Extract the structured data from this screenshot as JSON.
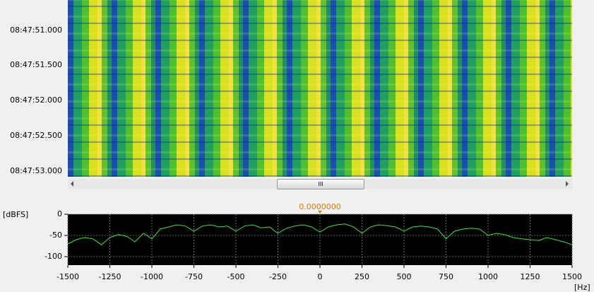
{
  "waterfall": {
    "time_labels": [
      "08:47:51.000",
      "08:47:51.500",
      "08:47:52.000",
      "08:47:52.500",
      "08:47:53.000"
    ]
  },
  "scrollbar": {
    "thumb_label": "III"
  },
  "chart_data": {
    "type": "line",
    "y_label": "[dBFS]",
    "x_label": "[Hz]",
    "marker_label": "0.0000000",
    "xlim": [
      -1500,
      1500
    ],
    "ylim": [
      -120,
      0
    ],
    "xticks": [
      -1500,
      -1250,
      -1000,
      -750,
      -500,
      -250,
      0,
      250,
      500,
      750,
      1000,
      1250,
      1500
    ],
    "yticks": [
      0,
      -50,
      -100
    ],
    "grid": true,
    "x": [
      -1500,
      -1450,
      -1400,
      -1350,
      -1300,
      -1250,
      -1200,
      -1150,
      -1100,
      -1050,
      -1000,
      -950,
      -900,
      -850,
      -800,
      -750,
      -700,
      -650,
      -600,
      -550,
      -500,
      -450,
      -400,
      -350,
      -300,
      -250,
      -200,
      -150,
      -100,
      -50,
      0,
      50,
      100,
      150,
      200,
      250,
      300,
      350,
      400,
      450,
      500,
      550,
      600,
      650,
      700,
      750,
      800,
      850,
      900,
      950,
      1000,
      1050,
      1100,
      1150,
      1200,
      1250,
      1300,
      1350,
      1400,
      1450,
      1500
    ],
    "series": [
      {
        "color": "#40e040",
        "values": [
          -70,
          -60,
          -55,
          -58,
          -72,
          -55,
          -48,
          -52,
          -65,
          -45,
          -58,
          -35,
          -30,
          -25,
          -28,
          -40,
          -28,
          -25,
          -30,
          -28,
          -40,
          -28,
          -25,
          -32,
          -30,
          -45,
          -33,
          -28,
          -25,
          -30,
          -42,
          -30,
          -25,
          -23,
          -30,
          -45,
          -30,
          -25,
          -27,
          -30,
          -40,
          -30,
          -28,
          -30,
          -35,
          -58,
          -40,
          -35,
          -33,
          -35,
          -50,
          -45,
          -48,
          -55,
          -58,
          -60,
          -62,
          -55,
          -60,
          -65,
          -72
        ]
      }
    ]
  }
}
